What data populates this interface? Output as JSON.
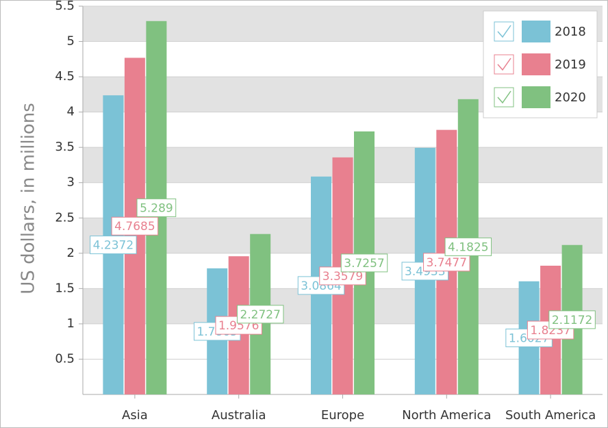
{
  "chart_data": {
    "type": "bar",
    "y_label": "US dollars, in millions",
    "categories": [
      "Asia",
      "Australia",
      "Europe",
      "North America",
      "South America"
    ],
    "series": [
      {
        "name": "2018",
        "color": "#7bc2d6",
        "values": [
          4.2372,
          1.7865,
          3.0864,
          3.4933,
          1.6027
        ]
      },
      {
        "name": "2019",
        "color": "#e8808f",
        "values": [
          4.7685,
          1.9576,
          3.3579,
          3.7477,
          1.8237
        ]
      },
      {
        "name": "2020",
        "color": "#80c180",
        "values": [
          5.289,
          2.2727,
          3.7257,
          4.1825,
          2.1172
        ]
      }
    ],
    "ylim": [
      0,
      5.5
    ],
    "yticks": [
      0.5,
      1,
      1.5,
      2,
      2.5,
      3,
      3.5,
      4,
      4.5,
      5,
      5.5
    ],
    "legend": "top-right"
  }
}
